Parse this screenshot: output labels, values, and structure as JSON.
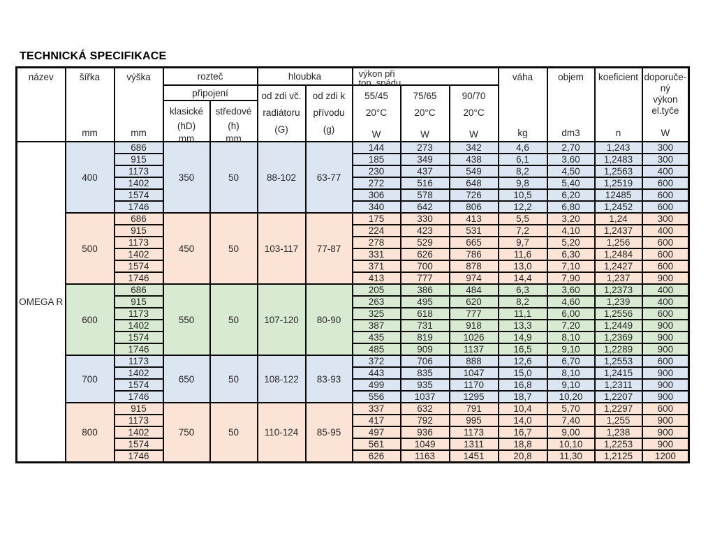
{
  "title": "TECHNICKÁ SPECIFIKACE",
  "colors": {
    "blue": "#dbe6f2",
    "salmon": "#fbe3d6",
    "green": "#d9ead3",
    "border": "#0b0b0b"
  },
  "table": {
    "product_name": "OMEGA R",
    "header": {
      "nazev": "název",
      "sirka": "šířka",
      "vyska": "výška",
      "roztec": "rozteč",
      "pripojeni": "připojení",
      "klasicke_l1": "klasické",
      "klasicke_l2": "(hD)",
      "stredove_l1": "středové",
      "stredove_l2": "(h)",
      "hloubka": "hloubka",
      "od_zdi_vc_l1": "od zdi  vč.",
      "od_zdi_vc_l2": "radiátoru",
      "od_zdi_vc_l3": "(G)",
      "od_zdi_k_l1": "od zdi  k",
      "od_zdi_k_l2": "přívodu",
      "od_zdi_k_l3": "(g)",
      "vykon_l1": "výkon při",
      "vykon_l2": "top. spádu",
      "temp_55": "55/45",
      "temp_75": "75/65",
      "temp_90": "90/70",
      "temp_unit": "20°C",
      "vaha": "váha",
      "objem": "objem",
      "koeficient": "koeficient",
      "dopor_l1": "doporuče-",
      "dopor_l2": "ný",
      "dopor_l3": "výkon",
      "dopor_l4": "el.tyče",
      "unit_mm": "mm",
      "unit_w": "W",
      "unit_kg": "kg",
      "unit_dm3": "dm3",
      "unit_n": "n"
    },
    "groups": [
      {
        "tint": "blue",
        "sirka": "400",
        "klasicke": "350",
        "stredove": "50",
        "hloubka_g": "88-102",
        "hloubka_g2": "63-77",
        "rows": [
          [
            "686",
            "144",
            "273",
            "342",
            "4,6",
            "2,70",
            "1,243",
            "300"
          ],
          [
            "915",
            "185",
            "349",
            "438",
            "6,1",
            "3,60",
            "1,2483",
            "300"
          ],
          [
            "1173",
            "230",
            "437",
            "549",
            "8,2",
            "4,50",
            "1,2563",
            "400"
          ],
          [
            "1402",
            "272",
            "516",
            "648",
            "9,8",
            "5,40",
            "1,2519",
            "600"
          ],
          [
            "1574",
            "306",
            "578",
            "726",
            "10,5",
            "6,20",
            "12485",
            "600"
          ],
          [
            "1746",
            "340",
            "642",
            "806",
            "12,2",
            "6,80",
            "1,2452",
            "600"
          ]
        ]
      },
      {
        "tint": "salmon",
        "sirka": "500",
        "klasicke": "450",
        "stredove": "50",
        "hloubka_g": "103-117",
        "hloubka_g2": "77-87",
        "rows": [
          [
            "686",
            "175",
            "330",
            "413",
            "5,5",
            "3,20",
            "1,24",
            "300"
          ],
          [
            "915",
            "224",
            "423",
            "531",
            "7,2",
            "4,10",
            "1,2437",
            "400"
          ],
          [
            "1173",
            "278",
            "529",
            "665",
            "9,7",
            "5,20",
            "1,256",
            "600"
          ],
          [
            "1402",
            "331",
            "626",
            "786",
            "11,6",
            "6,30",
            "1,2484",
            "600"
          ],
          [
            "1574",
            "371",
            "700",
            "878",
            "13,0",
            "7,10",
            "1,2427",
            "600"
          ],
          [
            "1746",
            "413",
            "777",
            "974",
            "14,4",
            "7,90",
            "1,237",
            "900"
          ]
        ]
      },
      {
        "tint": "green",
        "sirka": "600",
        "klasicke": "550",
        "stredove": "50",
        "hloubka_g": "107-120",
        "hloubka_g2": "80-90",
        "rows": [
          [
            "686",
            "205",
            "386",
            "484",
            "6,3",
            "3,60",
            "1,2373",
            "400"
          ],
          [
            "915",
            "263",
            "495",
            "620",
            "8,2",
            "4,60",
            "1,239",
            "400"
          ],
          [
            "1173",
            "325",
            "618",
            "777",
            "11,1",
            "6,00",
            "1,2556",
            "600"
          ],
          [
            "1402",
            "387",
            "731",
            "918",
            "13,3",
            "7,20",
            "1,2449",
            "900"
          ],
          [
            "1574",
            "435",
            "819",
            "1026",
            "14,9",
            "8,10",
            "1,2369",
            "900"
          ],
          [
            "1746",
            "485",
            "909",
            "1137",
            "16,5",
            "9,10",
            "1,2289",
            "900"
          ]
        ]
      },
      {
        "tint": "blue",
        "sirka": "700",
        "klasicke": "650",
        "stredove": "50",
        "hloubka_g": "108-122",
        "hloubka_g2": "83-93",
        "rows": [
          [
            "1173",
            "372",
            "706",
            "888",
            "12,6",
            "6,70",
            "1,2553",
            "600"
          ],
          [
            "1402",
            "443",
            "835",
            "1047",
            "15,0",
            "8,10",
            "1,2415",
            "900"
          ],
          [
            "1574",
            "499",
            "935",
            "1170",
            "16,8",
            "9,10",
            "1,2311",
            "900"
          ],
          [
            "1746",
            "556",
            "1037",
            "1295",
            "18,7",
            "10,20",
            "1,2207",
            "900"
          ]
        ]
      },
      {
        "tint": "salmon",
        "sirka": "800",
        "klasicke": "750",
        "stredove": "50",
        "hloubka_g": "110-124",
        "hloubka_g2": "85-95",
        "rows": [
          [
            "915",
            "337",
            "632",
            "791",
            "10,4",
            "5,70",
            "1,2297",
            "600"
          ],
          [
            "1173",
            "417",
            "792",
            "995",
            "14,0",
            "7,40",
            "1,255",
            "900"
          ],
          [
            "1402",
            "497",
            "936",
            "1173",
            "16,7",
            "9,00",
            "1,238",
            "900"
          ],
          [
            "1574",
            "561",
            "1049",
            "1311",
            "18,8",
            "10,10",
            "1,2253",
            "900"
          ],
          [
            "1746",
            "626",
            "1163",
            "1451",
            "20,8",
            "11,30",
            "1,2125",
            "1200"
          ]
        ]
      }
    ]
  }
}
